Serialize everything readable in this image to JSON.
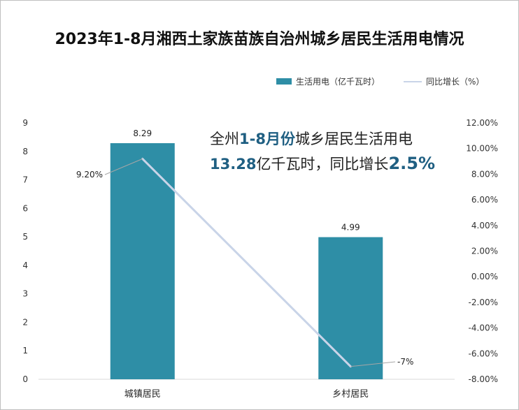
{
  "chart_data": {
    "type": "bar",
    "title": "2023年1-8月湘西土家族苗族自治州城乡居民生活用电情况",
    "categories": [
      "城镇居民",
      "乡村居民"
    ],
    "series": [
      {
        "name": "生活用电（亿千瓦时）",
        "type": "bar",
        "axis": "left",
        "values": [
          8.29,
          4.99
        ],
        "labels": [
          "8.29",
          "4.99"
        ],
        "color": "#2e8ea6"
      },
      {
        "name": "同比增长（%）",
        "type": "line",
        "axis": "right",
        "values": [
          9.2,
          -7
        ],
        "labels": [
          "9.20%",
          "-7%"
        ],
        "color": "#c9d4e8"
      }
    ],
    "y_left": {
      "min": 0,
      "max": 9,
      "step": 1,
      "ticks": [
        "0",
        "1",
        "2",
        "3",
        "4",
        "5",
        "6",
        "7",
        "8",
        "9"
      ]
    },
    "y_right": {
      "min": -8,
      "max": 12,
      "step": 2,
      "ticks": [
        "-8.00%",
        "-6.00%",
        "-4.00%",
        "-2.00%",
        "0.00%",
        "2.00%",
        "4.00%",
        "6.00%",
        "8.00%",
        "10.00%",
        "12.00%"
      ]
    },
    "legend": {
      "position": "top-right"
    },
    "grid": false
  },
  "legend": {
    "bar_label": "生活用电（亿千瓦时）",
    "line_label": "同比增长（%）"
  },
  "annotation": {
    "part1": "全州",
    "part2": "1-8月份",
    "part3": "城乡居民生活用电",
    "part4": "13.28",
    "part5": "亿千瓦时，同比增长",
    "part6": "2.5%"
  }
}
